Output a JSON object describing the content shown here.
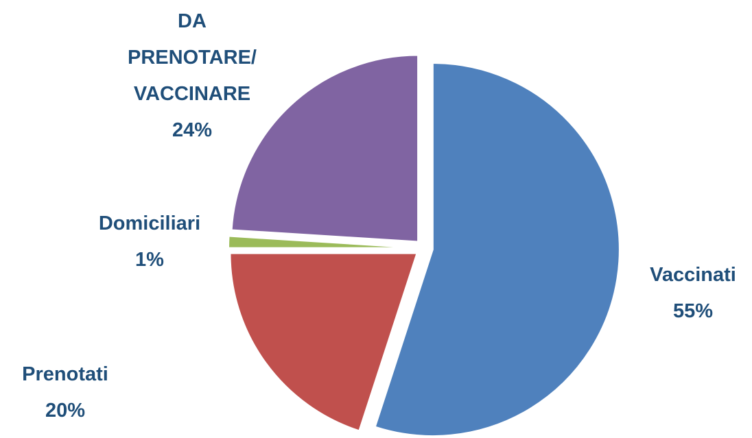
{
  "chart_data": {
    "type": "pie",
    "categories": [
      "Vaccinati",
      "Prenotati",
      "Domiciliari",
      "DA PRENOTARE/ VACCINARE"
    ],
    "values": [
      55,
      20,
      1,
      24
    ],
    "value_labels": [
      "55%",
      "20%",
      "1%",
      "24%"
    ],
    "colors": [
      "#4f81bd",
      "#c0504d",
      "#9bbb59",
      "#8064a2"
    ]
  }
}
